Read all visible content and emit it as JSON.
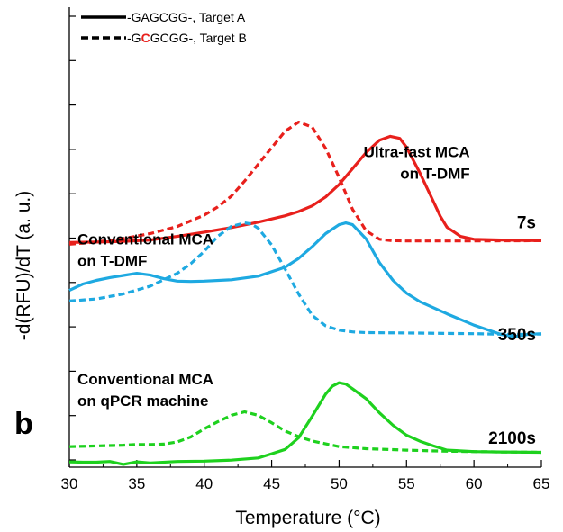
{
  "panel_letter": "b",
  "chart_data": {
    "type": "line",
    "xlabel": "Temperature (°C)",
    "ylabel": "-d(RFU)/dT (a. u.)",
    "xlim": [
      30,
      65
    ],
    "xticks": [
      30,
      35,
      40,
      45,
      50,
      55,
      60,
      65
    ],
    "grid": false,
    "legend": {
      "placement": "top-left",
      "entries": [
        {
          "style": "solid",
          "parts": [
            {
              "text": "-GAGCGG-, Target A",
              "color": "#000000"
            }
          ]
        },
        {
          "style": "dashed",
          "parts": [
            {
              "text": "-G",
              "color": "#000000"
            },
            {
              "text": "C",
              "color": "#e8201c",
              "bold": true
            },
            {
              "text": "GCGG-, Target B",
              "color": "#000000"
            }
          ]
        }
      ]
    },
    "annotations": [
      {
        "lines": [
          "Ultra-fast MCA",
          "on T-DMF"
        ],
        "anchor": "end",
        "x": 59.7,
        "y": 8.45
      },
      {
        "lines": [
          "7s"
        ],
        "anchor": "end",
        "x": 64.6,
        "y": 6.45,
        "time": true
      },
      {
        "lines": [
          "Conventional MCA",
          "on T-DMF"
        ],
        "anchor": "start",
        "x": 30.6,
        "y": 6.0
      },
      {
        "lines": [
          "350s"
        ],
        "anchor": "end",
        "x": 64.6,
        "y": 3.3,
        "time": true
      },
      {
        "lines": [
          "Conventional MCA",
          "on qPCR machine"
        ],
        "anchor": "start",
        "x": 30.6,
        "y": 2.05
      },
      {
        "lines": [
          "2100s"
        ],
        "anchor": "end",
        "x": 64.6,
        "y": 0.38,
        "time": true
      }
    ],
    "series": [
      {
        "color": "#e8201c",
        "dash": false,
        "x": [
          30,
          32,
          34,
          36,
          38,
          40,
          42,
          44,
          46,
          47,
          48,
          49,
          50,
          51,
          52,
          53,
          53.8,
          54.5,
          55,
          56,
          57,
          57.5,
          58,
          59,
          60,
          62,
          65
        ],
        "y": [
          6.05,
          6.06,
          6.08,
          6.12,
          6.22,
          6.34,
          6.47,
          6.62,
          6.8,
          6.92,
          7.08,
          7.33,
          7.68,
          8.13,
          8.58,
          8.93,
          9.04,
          8.98,
          8.73,
          8.0,
          7.2,
          6.79,
          6.48,
          6.22,
          6.14,
          6.12,
          6.1
        ]
      },
      {
        "color": "#e8201c",
        "dash": true,
        "x": [
          30,
          32,
          34,
          36,
          38,
          40,
          41,
          42,
          43,
          44,
          45,
          46,
          47,
          48,
          49,
          50,
          51,
          52,
          53,
          54,
          55,
          57,
          60,
          65
        ],
        "y": [
          6.0,
          6.06,
          6.16,
          6.3,
          6.5,
          6.82,
          7.05,
          7.35,
          7.78,
          8.25,
          8.72,
          9.18,
          9.44,
          9.3,
          8.7,
          7.88,
          6.98,
          6.38,
          6.14,
          6.1,
          6.09,
          6.09,
          6.09,
          6.1
        ]
      },
      {
        "color": "#1ea9e1",
        "dash": false,
        "x": [
          30,
          31,
          32,
          33,
          34,
          35,
          36,
          37,
          38,
          39,
          40,
          42,
          44,
          46,
          47,
          48,
          49,
          50,
          50.5,
          51,
          52,
          53,
          54,
          55,
          56,
          58,
          60,
          62,
          63,
          64,
          65
        ],
        "y": [
          4.7,
          4.88,
          4.98,
          5.06,
          5.12,
          5.18,
          5.13,
          5.03,
          4.96,
          4.95,
          4.96,
          5.0,
          5.1,
          5.35,
          5.6,
          5.93,
          6.3,
          6.55,
          6.6,
          6.55,
          6.15,
          5.48,
          4.98,
          4.62,
          4.38,
          4.04,
          3.72,
          3.46,
          3.4,
          3.46,
          3.48
        ]
      },
      {
        "color": "#1ea9e1",
        "dash": true,
        "x": [
          30,
          32,
          34,
          36,
          38,
          39,
          40,
          41,
          42,
          43,
          43.5,
          44,
          45,
          46,
          47,
          48,
          49,
          50,
          51,
          52,
          55,
          60,
          63,
          65
        ],
        "y": [
          4.4,
          4.46,
          4.6,
          4.82,
          5.18,
          5.45,
          5.8,
          6.22,
          6.5,
          6.6,
          6.57,
          6.45,
          5.98,
          5.3,
          4.6,
          4.0,
          3.7,
          3.58,
          3.53,
          3.51,
          3.5,
          3.48,
          3.46,
          3.47
        ]
      },
      {
        "color": "#1ed11e",
        "dash": false,
        "x": [
          30,
          31,
          32,
          33,
          34,
          35,
          36,
          38,
          40,
          42,
          44,
          45,
          46,
          47,
          48,
          49,
          49.5,
          50,
          50.5,
          51,
          52,
          53,
          54,
          55,
          56,
          57,
          58,
          60,
          62,
          65
        ],
        "y": [
          -0.13,
          -0.14,
          -0.14,
          -0.12,
          -0.2,
          -0.13,
          -0.16,
          -0.12,
          -0.11,
          -0.08,
          -0.02,
          0.1,
          0.22,
          0.55,
          1.15,
          1.78,
          2.0,
          2.1,
          2.06,
          1.93,
          1.65,
          1.25,
          0.9,
          0.62,
          0.45,
          0.32,
          0.2,
          0.16,
          0.15,
          0.14
        ]
      },
      {
        "color": "#1ed11e",
        "dash": true,
        "x": [
          30,
          32,
          34,
          35,
          36,
          37,
          38,
          39,
          40,
          41,
          42,
          43,
          44,
          45,
          46,
          47,
          48,
          50,
          52,
          55,
          58,
          60,
          62,
          65
        ],
        "y": [
          0.3,
          0.32,
          0.34,
          0.36,
          0.36,
          0.37,
          0.43,
          0.57,
          0.8,
          1.0,
          1.18,
          1.28,
          1.18,
          0.97,
          0.74,
          0.58,
          0.46,
          0.3,
          0.24,
          0.2,
          0.17,
          0.16,
          0.15,
          0.14
        ]
      }
    ]
  }
}
